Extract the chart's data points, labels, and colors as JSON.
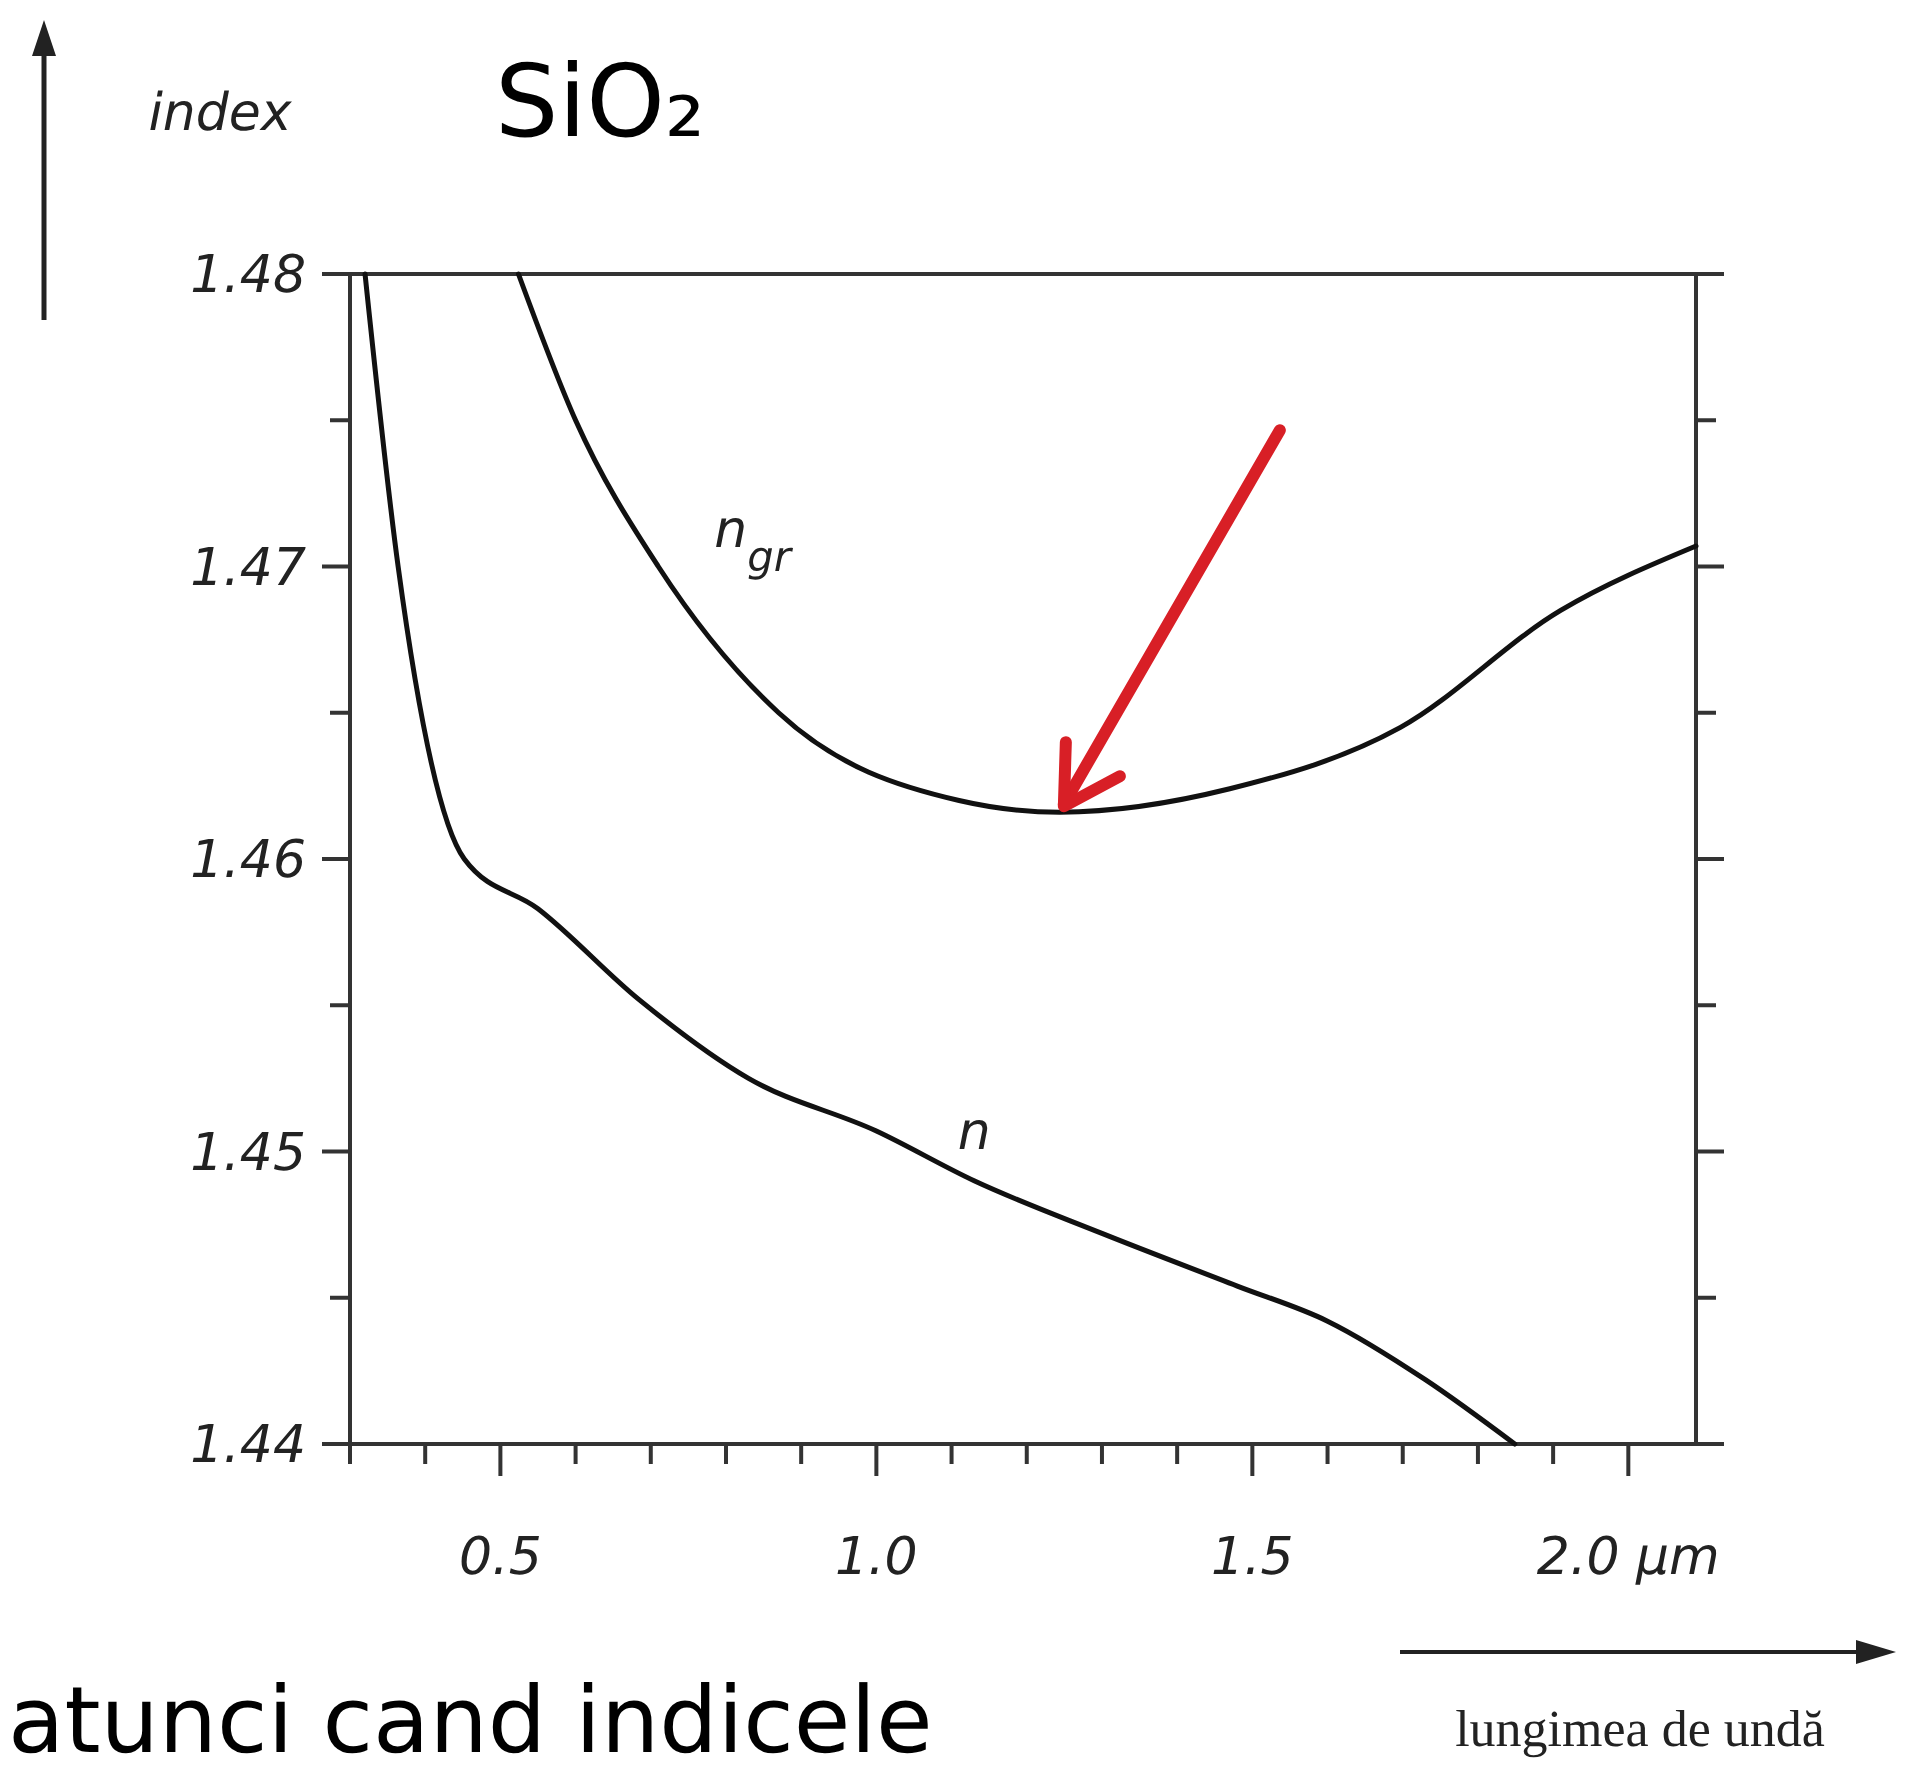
{
  "chart_data": {
    "type": "line",
    "title": "SiO₂",
    "xlabel": "lungimea de undă",
    "ylabel": "index",
    "annotations": [
      "atunci cand indicele"
    ],
    "xlim": [
      0.3,
      2.09
    ],
    "ylim": [
      1.44,
      1.48
    ],
    "xticks": [
      {
        "value": 0.3,
        "label": null
      },
      {
        "value": 0.4,
        "label": null
      },
      {
        "value": 0.5,
        "label": "0.5"
      },
      {
        "value": 0.6,
        "label": null
      },
      {
        "value": 0.7,
        "label": null
      },
      {
        "value": 0.8,
        "label": null
      },
      {
        "value": 0.9,
        "label": null
      },
      {
        "value": 1.0,
        "label": "1.0"
      },
      {
        "value": 1.1,
        "label": null
      },
      {
        "value": 1.2,
        "label": null
      },
      {
        "value": 1.3,
        "label": null
      },
      {
        "value": 1.4,
        "label": null
      },
      {
        "value": 1.5,
        "label": "1.5"
      },
      {
        "value": 1.6,
        "label": null
      },
      {
        "value": 1.7,
        "label": null
      },
      {
        "value": 1.8,
        "label": null
      },
      {
        "value": 1.9,
        "label": null
      },
      {
        "value": 2.0,
        "label": "2.0 μm"
      }
    ],
    "yticks": [
      1.44,
      {
        "value": 1.445,
        "label": null
      },
      1.45,
      {
        "value": 1.455,
        "label": null
      },
      1.46,
      {
        "value": 1.465,
        "label": null
      },
      1.47,
      {
        "value": 1.475,
        "label": null
      },
      1.48
    ],
    "grid": false,
    "legend": false,
    "marker": "none",
    "line_style": "solid",
    "series": [
      {
        "name": "n$_{gr}$",
        "color": "#111111",
        "x": [
          0.524,
          0.6,
          0.71,
          0.87,
          1.11,
          1.244,
          1.47,
          1.697,
          1.91,
          2.09
        ],
        "values": [
          1.48,
          1.475,
          1.47,
          1.465,
          1.462,
          1.4616,
          1.4624,
          1.4645,
          1.4685,
          1.4707
        ]
      },
      {
        "name": "n",
        "color": "#111111",
        "x": [
          0.32,
          0.364,
          0.452,
          0.55,
          0.684,
          0.83,
          1.0,
          1.13,
          1.3,
          1.48,
          1.6,
          1.73,
          1.849
        ],
        "values": [
          1.48,
          1.47,
          1.46,
          1.4583,
          1.4552,
          1.4525,
          1.4507,
          1.449,
          1.4472,
          1.4454,
          1.4442,
          1.4422,
          1.44
        ]
      }
    ]
  }
}
